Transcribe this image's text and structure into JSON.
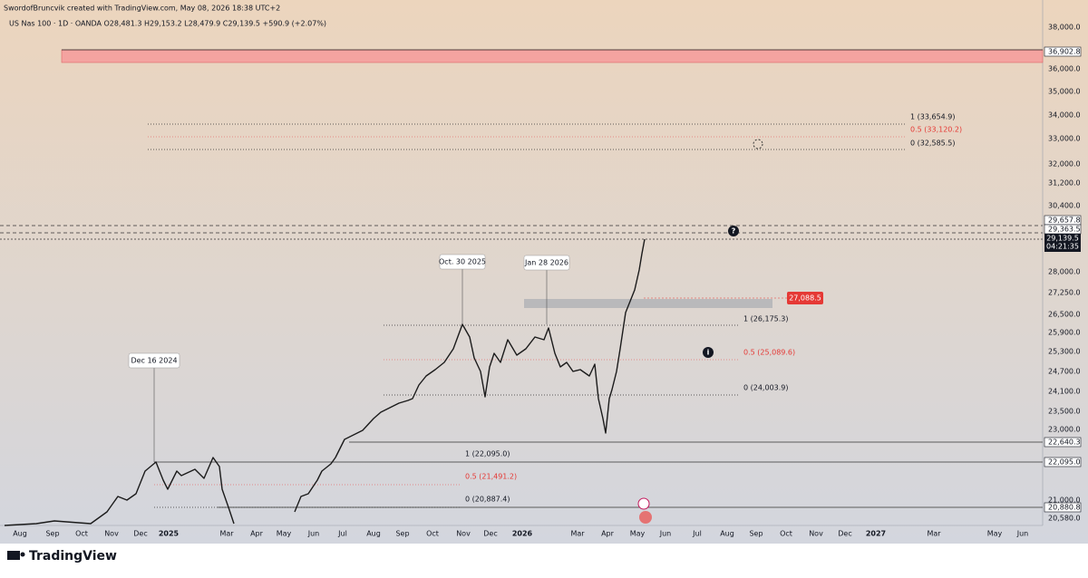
{
  "header": {
    "credit": "SwordofBruncvik created with TradingView.com, May 08, 2026 18:38 UTC+2",
    "symbol": "US Nas 100 · 1D · OANDA  O28,481.3  H29,153.2  L28,479.9  C29,139.5  +590.9 (+2.07%)"
  },
  "price_axis": {
    "ticks": [
      "38,000.0",
      "36,000.0",
      "35,000.0",
      "34,000.0",
      "33,000.0",
      "32,000.0",
      "31,200.0",
      "30,400.0",
      "28,000.0",
      "27,250.0",
      "26,500.0",
      "25,900.0",
      "25,300.0",
      "24,700.0",
      "24,100.0",
      "23,500.0",
      "23,000.0",
      "21,000.0",
      "20,580.0"
    ],
    "markers": [
      "36,902.8",
      "29,657.8",
      "29,363.5",
      "22,640.3",
      "22,095.0",
      "20,880.8"
    ],
    "last_price": "29,139.5",
    "countdown": "04:21:35",
    "alert_price": "27,088.5"
  },
  "time_axis": {
    "labels": [
      "Aug",
      "Sep",
      "Oct",
      "Nov",
      "Dec",
      "2025",
      "Mar",
      "Apr",
      "May",
      "Jun",
      "Jul",
      "Aug",
      "Sep",
      "Oct",
      "Nov",
      "Dec",
      "2026",
      "Mar",
      "Apr",
      "May",
      "Jun",
      "Jul",
      "Aug",
      "Sep",
      "Oct",
      "Nov",
      "Dec",
      "2027",
      "Mar",
      "May",
      "Jun"
    ]
  },
  "annotations": [
    "Dec 16 2024",
    "Oct. 30 2025",
    "Jan 28 2026"
  ],
  "fib_upper": [
    "1 (33,654.9)",
    "0.5 (33,120.2)",
    "0 (32,585.5)"
  ],
  "fib_middle": [
    "1 (26,175.3)",
    "0.5 (25,089.6)",
    "0 (24,003.9)"
  ],
  "fib_lower": [
    "1 (22,095.0)",
    "0.5 (21,491.2)",
    "0 (20,887.4)"
  ],
  "footer": {
    "brand": "TradingView"
  }
}
